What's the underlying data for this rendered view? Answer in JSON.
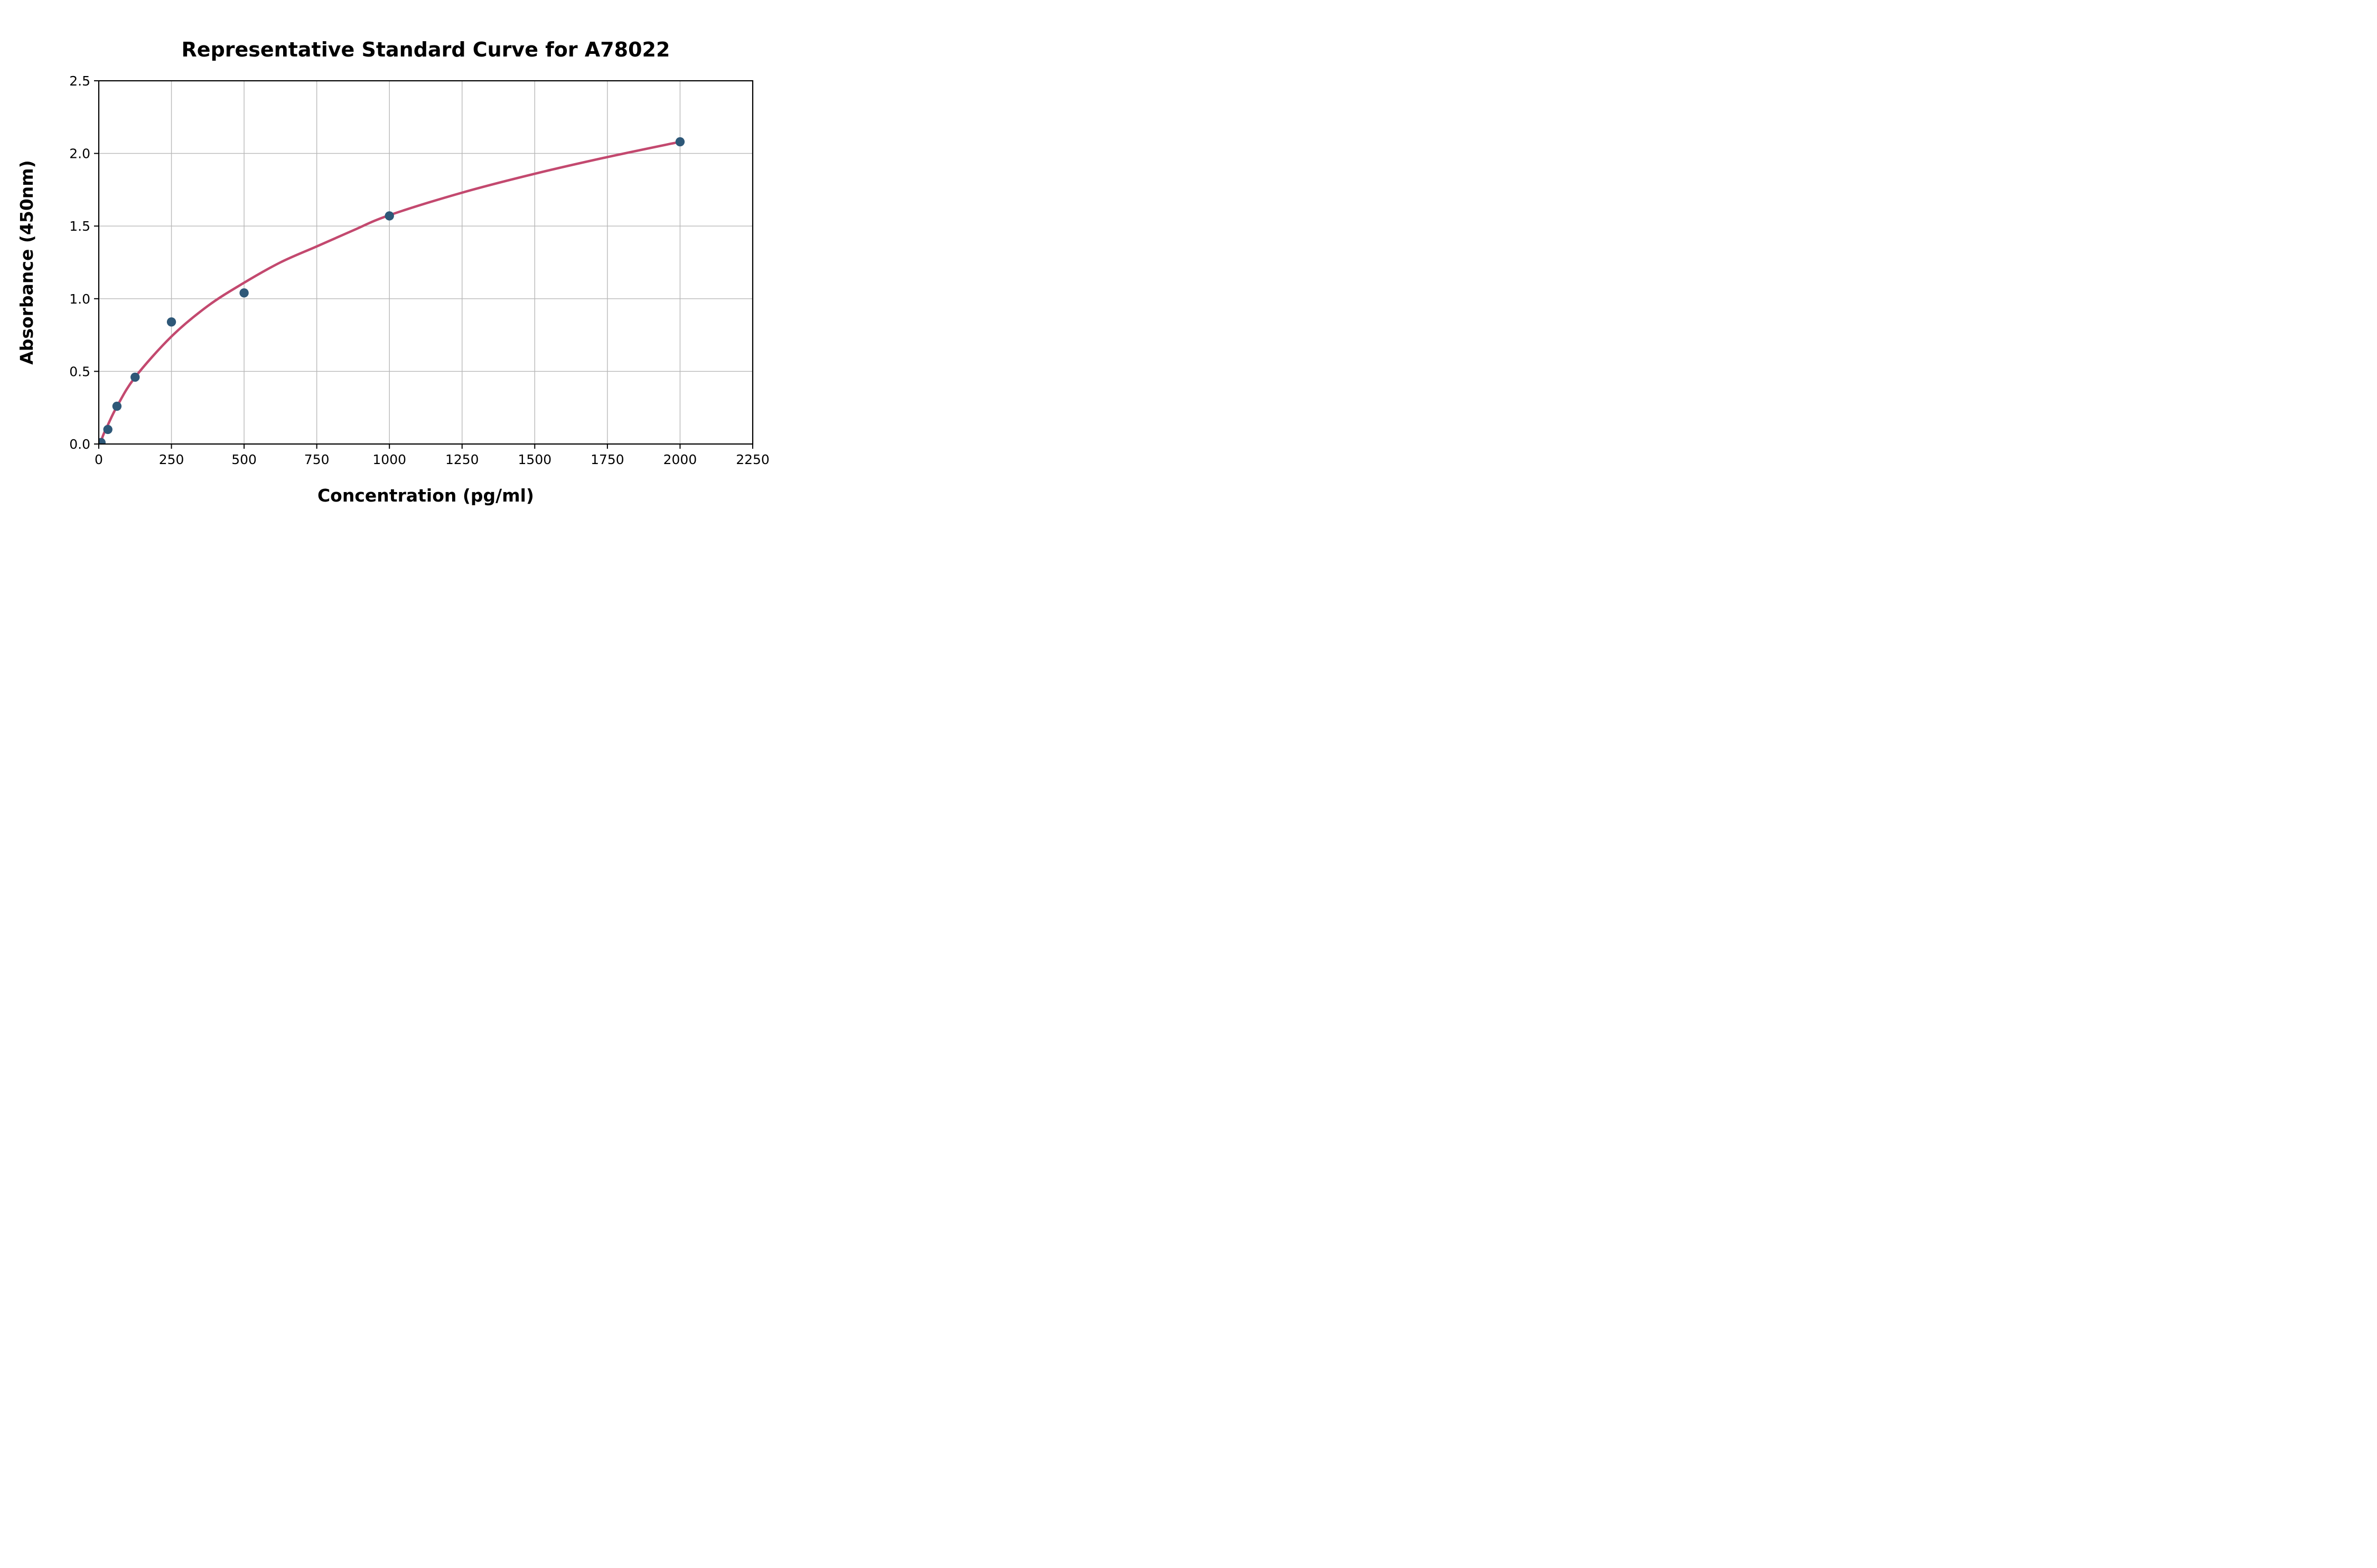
{
  "chart_data": {
    "type": "scatter",
    "title": "Representative Standard Curve for A78022",
    "xlabel": "Concentration (pg/ml)",
    "ylabel": "Absorbance (450nm)",
    "xlim": [
      0,
      2250
    ],
    "ylim": [
      0,
      2.5
    ],
    "x_ticks": [
      0,
      250,
      500,
      750,
      1000,
      1250,
      1500,
      1750,
      2000,
      2250
    ],
    "y_ticks": [
      "0.0",
      "0.5",
      "1.0",
      "1.5",
      "2.0",
      "2.5"
    ],
    "grid": true,
    "grid_color": "#b8b8b8",
    "axis_color": "#000000",
    "background_color": "#ffffff",
    "legend_position": "none",
    "series": [
      {
        "name": "standard-points",
        "kind": "scatter",
        "color": "#2e5878",
        "marker_radius": 8.7,
        "points": [
          {
            "x": 7.8,
            "y": 0.01
          },
          {
            "x": 31.25,
            "y": 0.1
          },
          {
            "x": 62.5,
            "y": 0.26
          },
          {
            "x": 125,
            "y": 0.46
          },
          {
            "x": 250,
            "y": 0.84
          },
          {
            "x": 500,
            "y": 1.04
          },
          {
            "x": 1000,
            "y": 1.57
          },
          {
            "x": 2000,
            "y": 2.08
          }
        ]
      },
      {
        "name": "fitted-curve",
        "kind": "line",
        "color": "#c3496f",
        "stroke_width": 4.6,
        "points": [
          {
            "x": 5,
            "y": 0.0
          },
          {
            "x": 15,
            "y": 0.06
          },
          {
            "x": 31,
            "y": 0.13
          },
          {
            "x": 63,
            "y": 0.26
          },
          {
            "x": 125,
            "y": 0.46
          },
          {
            "x": 250,
            "y": 0.74
          },
          {
            "x": 375,
            "y": 0.95
          },
          {
            "x": 500,
            "y": 1.11
          },
          {
            "x": 625,
            "y": 1.25
          },
          {
            "x": 750,
            "y": 1.36
          },
          {
            "x": 875,
            "y": 1.47
          },
          {
            "x": 1000,
            "y": 1.575
          },
          {
            "x": 1250,
            "y": 1.73
          },
          {
            "x": 1500,
            "y": 1.86
          },
          {
            "x": 1750,
            "y": 1.975
          },
          {
            "x": 2000,
            "y": 2.08
          }
        ]
      }
    ]
  }
}
